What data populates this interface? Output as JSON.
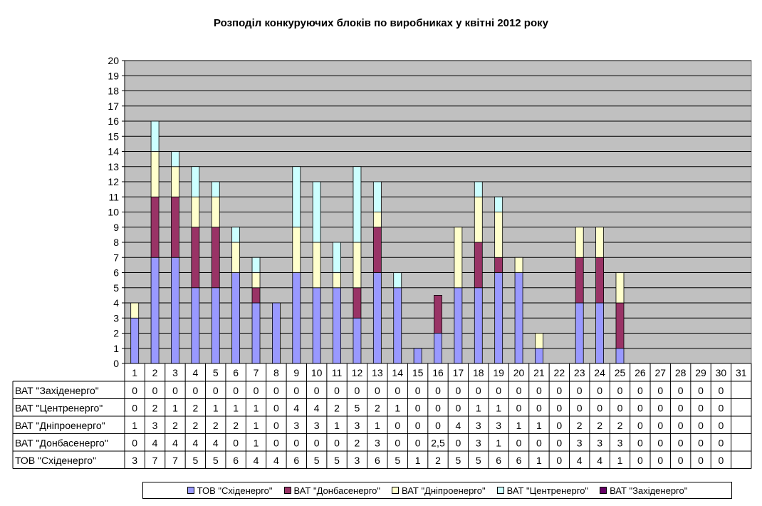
{
  "chart_data": {
    "type": "bar",
    "stacked": true,
    "title": "Розподіл конкуруючих блоків по виробниках у квітні 2012 року",
    "categories": [
      "1",
      "2",
      "3",
      "4",
      "5",
      "6",
      "7",
      "8",
      "9",
      "10",
      "11",
      "12",
      "13",
      "14",
      "15",
      "16",
      "17",
      "18",
      "19",
      "20",
      "21",
      "22",
      "23",
      "24",
      "25",
      "26",
      "27",
      "28",
      "29",
      "30",
      "31"
    ],
    "ylim": [
      0,
      20
    ],
    "yticks": [
      "0",
      "1",
      "2",
      "3",
      "4",
      "5",
      "6",
      "7",
      "8",
      "9",
      "10",
      "11",
      "12",
      "13",
      "14",
      "15",
      "16",
      "17",
      "18",
      "19",
      "20"
    ],
    "grid": true,
    "legend_position": "bottom",
    "series": [
      {
        "name": "ТОВ \"Східенерго\"",
        "color": "#9999ff",
        "values": [
          3,
          7,
          7,
          5,
          5,
          6,
          4,
          4,
          6,
          5,
          5,
          3,
          6,
          5,
          1,
          2,
          5,
          5,
          6,
          6,
          1,
          0,
          4,
          4,
          1,
          0,
          0,
          0,
          0,
          0,
          null
        ],
        "labels": [
          "3",
          "7",
          "7",
          "5",
          "5",
          "6",
          "4",
          "4",
          "6",
          "5",
          "5",
          "3",
          "6",
          "5",
          "1",
          "2",
          "5",
          "5",
          "6",
          "6",
          "1",
          "0",
          "4",
          "4",
          "1",
          "0",
          "0",
          "0",
          "0",
          "0",
          ""
        ]
      },
      {
        "name": "ВАТ \"Донбасенерго\"",
        "color": "#993366",
        "values": [
          0,
          4,
          4,
          4,
          4,
          0,
          1,
          0,
          0,
          0,
          0,
          2,
          3,
          0,
          0,
          2.5,
          0,
          3,
          1,
          0,
          0,
          0,
          3,
          3,
          3,
          0,
          0,
          0,
          0,
          0,
          null
        ],
        "labels": [
          "0",
          "4",
          "4",
          "4",
          "4",
          "0",
          "1",
          "0",
          "0",
          "0",
          "0",
          "2",
          "3",
          "0",
          "0",
          "2,5",
          "0",
          "3",
          "1",
          "0",
          "0",
          "0",
          "3",
          "3",
          "3",
          "0",
          "0",
          "0",
          "0",
          "0",
          ""
        ]
      },
      {
        "name": "ВАТ \"Дніпроенерго\"",
        "color": "#ffffcc",
        "values": [
          1,
          3,
          2,
          2,
          2,
          2,
          1,
          0,
          3,
          3,
          1,
          3,
          1,
          0,
          0,
          0,
          4,
          3,
          3,
          1,
          1,
          0,
          2,
          2,
          2,
          0,
          0,
          0,
          0,
          0,
          null
        ],
        "labels": [
          "1",
          "3",
          "2",
          "2",
          "2",
          "2",
          "1",
          "0",
          "3",
          "3",
          "1",
          "3",
          "1",
          "0",
          "0",
          "0",
          "4",
          "3",
          "3",
          "1",
          "1",
          "0",
          "2",
          "2",
          "2",
          "0",
          "0",
          "0",
          "0",
          "0",
          ""
        ]
      },
      {
        "name": "ВАТ \"Центренерго\"",
        "color": "#ccffff",
        "values": [
          0,
          2,
          1,
          2,
          1,
          1,
          1,
          0,
          4,
          4,
          2,
          5,
          2,
          1,
          0,
          0,
          0,
          1,
          1,
          0,
          0,
          0,
          0,
          0,
          0,
          0,
          0,
          0,
          0,
          0,
          null
        ],
        "labels": [
          "0",
          "2",
          "1",
          "2",
          "1",
          "1",
          "1",
          "0",
          "4",
          "4",
          "2",
          "5",
          "2",
          "1",
          "0",
          "0",
          "0",
          "1",
          "1",
          "0",
          "0",
          "0",
          "0",
          "0",
          "0",
          "0",
          "0",
          "0",
          "0",
          "0",
          ""
        ]
      },
      {
        "name": "ВАТ \"Західенерго\"",
        "color": "#660066",
        "values": [
          0,
          0,
          0,
          0,
          0,
          0,
          0,
          0,
          0,
          0,
          0,
          0,
          0,
          0,
          0,
          0,
          0,
          0,
          0,
          0,
          0,
          0,
          0,
          0,
          0,
          0,
          0,
          0,
          0,
          0,
          null
        ],
        "labels": [
          "0",
          "0",
          "0",
          "0",
          "0",
          "0",
          "0",
          "0",
          "0",
          "0",
          "0",
          "0",
          "0",
          "0",
          "0",
          "0",
          "0",
          "0",
          "0",
          "0",
          "0",
          "0",
          "0",
          "0",
          "0",
          "0",
          "0",
          "0",
          "0",
          "0",
          ""
        ]
      }
    ],
    "table_row_order": [
      4,
      3,
      2,
      1,
      0
    ],
    "plot_background": "#c0c0c0"
  }
}
